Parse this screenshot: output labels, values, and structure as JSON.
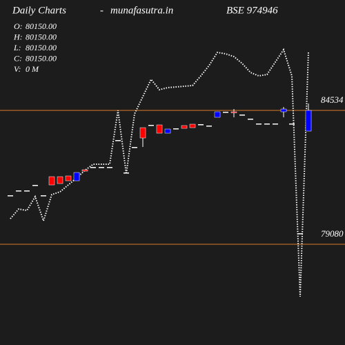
{
  "chart_data": {
    "type": "candlestick",
    "title": "Daily Charts",
    "separator": "-",
    "site": "munafasutra.in",
    "symbol": "BSE 974946",
    "info": [
      {
        "label": "O:",
        "text": "80150.00"
      },
      {
        "label": "H:",
        "text": "80150.00"
      },
      {
        "label": "L:",
        "text": "80150.00"
      },
      {
        "label": "C:",
        "text": "80150.00"
      },
      {
        "label": "V:",
        "text": "0  M"
      }
    ],
    "ylim": [
      74977,
      89032
    ],
    "up_color": "#0000ff",
    "down_color": "#ff0000",
    "flat_color": "#ffffff",
    "line_color": "#ffffff",
    "level_color": "#e07b2a",
    "open": [
      81076,
      81273,
      81273,
      81498,
      81076,
      81835,
      81835,
      81864,
      81667,
      82117,
      82229,
      82229,
      82229,
      83325,
      82004,
      83044,
      83831,
      83944,
      83944,
      83606,
      83803,
      83916,
      83972,
      83972,
      83916,
      84253,
      84478,
      84478,
      84365,
      84197,
      84000,
      84000,
      84000,
      84478,
      84000,
      79530,
      83691
    ],
    "high": [
      81076,
      81273,
      81273,
      81498,
      81076,
      81835,
      81835,
      81864,
      82004,
      82117,
      82229,
      82229,
      82229,
      83325,
      82004,
      83044,
      83831,
      83944,
      83944,
      83775,
      83803,
      83916,
      83972,
      83972,
      83916,
      84478,
      84478,
      84590,
      84365,
      84197,
      84000,
      84000,
      84000,
      84675,
      84000,
      79530,
      84815
    ],
    "low": [
      81076,
      81273,
      81273,
      81498,
      81076,
      81498,
      81554,
      81667,
      81667,
      82060,
      82229,
      82229,
      82229,
      83325,
      82004,
      83044,
      83044,
      83944,
      83606,
      83606,
      83803,
      83803,
      83831,
      83972,
      83916,
      84253,
      84478,
      84253,
      84365,
      84197,
      84000,
      84000,
      84000,
      84253,
      84000,
      79530,
      83691
    ],
    "close": [
      81076,
      81273,
      81273,
      81498,
      81076,
      81498,
      81554,
      81667,
      82004,
      82060,
      82229,
      82229,
      82229,
      83325,
      82004,
      83044,
      83410,
      83944,
      83606,
      83775,
      83803,
      83803,
      83831,
      83972,
      83916,
      84478,
      84478,
      84450,
      84365,
      84197,
      84000,
      84000,
      84000,
      84590,
      84000,
      79530,
      84534
    ],
    "line": [
      80121,
      80514,
      80458,
      81020,
      80036,
      81105,
      81217,
      81498,
      81779,
      82088,
      82341,
      82341,
      82341,
      84534,
      81948,
      84393,
      85096,
      85799,
      85377,
      85462,
      85490,
      85518,
      85546,
      85940,
      86361,
      86895,
      86839,
      86727,
      86445,
      86080,
      85940,
      85996,
      86502,
      87008,
      85940,
      76944,
      86923
    ],
    "levels": [
      84534,
      79080
    ]
  }
}
